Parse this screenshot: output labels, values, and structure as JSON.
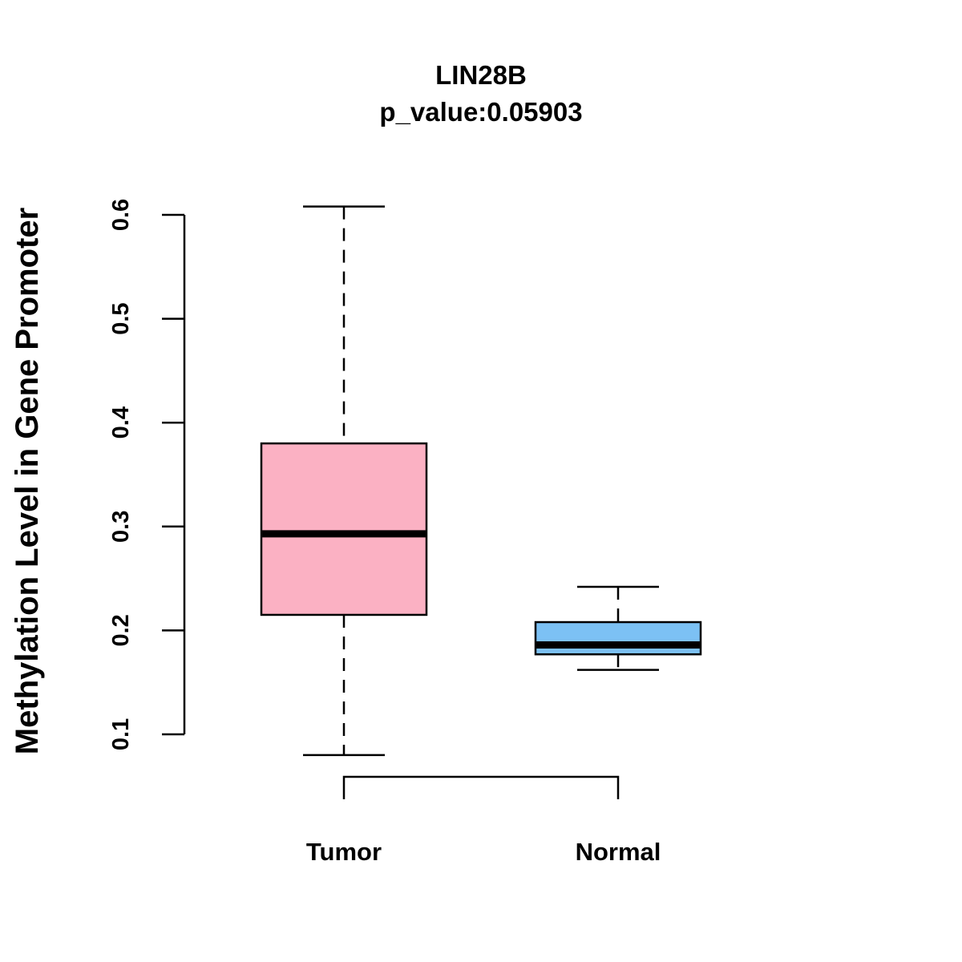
{
  "chart_data": {
    "type": "boxplot",
    "title": "LIN28B",
    "subtitle": "p_value:0.05903",
    "xlabel": "",
    "ylabel": "Methylation Level in Gene Promoter",
    "ylim": [
      0.1,
      0.6
    ],
    "yticks": [
      0.1,
      0.2,
      0.3,
      0.4,
      0.5,
      0.6
    ],
    "ytick_labels": [
      "0.1",
      "0.2",
      "0.3",
      "0.4",
      "0.5",
      "0.6"
    ],
    "categories": [
      "Tumor",
      "Normal"
    ],
    "boxes": [
      {
        "name": "Tumor",
        "whisker_low": 0.08,
        "q1": 0.215,
        "median": 0.293,
        "q3": 0.38,
        "whisker_high": 0.608,
        "color": "#FBB1C3"
      },
      {
        "name": "Normal",
        "whisker_low": 0.162,
        "q1": 0.177,
        "median": 0.186,
        "q3": 0.208,
        "whisker_high": 0.242,
        "color": "#7CC1F4"
      }
    ],
    "grid": false,
    "legend": "none"
  }
}
